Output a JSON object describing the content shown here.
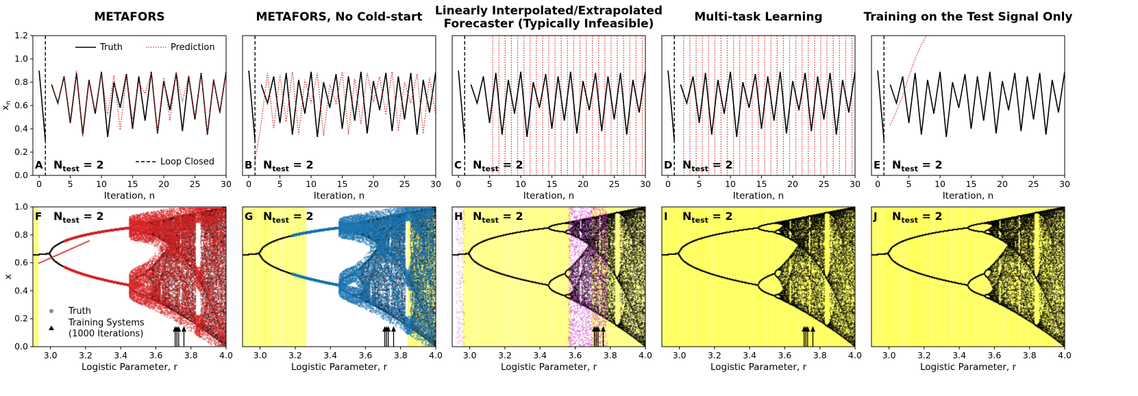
{
  "colors": {
    "truth": "#000000",
    "prediction": "#d62728",
    "loop": "#000000",
    "highlight": "#ffff66",
    "metafors_pred": "#d62728",
    "nocold_pred": "#1f77b4",
    "interp_pred": "#cc33cc",
    "training_marker": "#000000"
  },
  "legend": {
    "truth": "Truth",
    "prediction": "Prediction",
    "loop_closed": "Loop Closed",
    "truth_marker": "Truth",
    "training_line1": "Training Systems",
    "training_line2": "(1000 Iterations)"
  },
  "ntest": {
    "prefix": "N",
    "sub": "test",
    "suffix": " = 2"
  },
  "chart_data": [
    {
      "type": "line",
      "panel": "A",
      "title": [
        "METAFORS"
      ],
      "xlabel": "Iteration, n",
      "ylabel": "x_n",
      "xlim": [
        -1,
        30
      ],
      "ylim": [
        0,
        1.2
      ],
      "xticks": [
        0,
        5,
        10,
        15,
        20,
        25,
        30
      ],
      "yticks": [
        0.0,
        0.2,
        0.4,
        0.6,
        0.8,
        1.0,
        1.2
      ],
      "loop_closed_x": 1,
      "show_legend": true,
      "series": [
        {
          "name": "Truth",
          "x": [
            0,
            1
          ],
          "y": [
            0.9,
            0.3
          ]
        },
        {
          "name": "Truth",
          "x": [
            2,
            3,
            4,
            5,
            6,
            7,
            8,
            9,
            10,
            11,
            12,
            13,
            14,
            15,
            16,
            17,
            18,
            19,
            20,
            21,
            22,
            23,
            24,
            25,
            26,
            27,
            28,
            29,
            30
          ],
          "y": [
            0.78,
            0.62,
            0.85,
            0.45,
            0.88,
            0.35,
            0.82,
            0.53,
            0.89,
            0.33,
            0.8,
            0.58,
            0.87,
            0.4,
            0.85,
            0.47,
            0.89,
            0.36,
            0.81,
            0.56,
            0.88,
            0.38,
            0.85,
            0.48,
            0.88,
            0.35,
            0.82,
            0.54,
            0.89
          ]
        },
        {
          "name": "Prediction",
          "x": [
            2,
            3,
            4,
            5,
            6,
            7,
            8,
            9,
            10,
            11,
            12,
            13,
            14,
            15,
            16,
            17,
            18,
            19,
            20,
            21,
            22,
            23,
            24,
            25,
            26,
            27,
            28,
            29,
            30
          ],
          "y": [
            0.77,
            0.63,
            0.84,
            0.47,
            0.9,
            0.33,
            0.81,
            0.55,
            0.87,
            0.52,
            0.86,
            0.39,
            0.85,
            0.48,
            0.8,
            0.7,
            0.88,
            0.37,
            0.84,
            0.47,
            0.89,
            0.63,
            0.86,
            0.5,
            0.87,
            0.36,
            0.83,
            0.53,
            0.89
          ]
        }
      ]
    },
    {
      "type": "line",
      "panel": "B",
      "title": [
        "METAFORS, No Cold-start"
      ],
      "xlabel": "Iteration, n",
      "xlim": [
        -1,
        30
      ],
      "ylim": [
        0,
        1.2
      ],
      "xticks": [
        0,
        5,
        10,
        15,
        20,
        25,
        30
      ],
      "loop_closed_x": 1,
      "series": [
        {
          "name": "Truth",
          "x": [
            0,
            1
          ],
          "y": [
            0.9,
            0.3
          ]
        },
        {
          "name": "Truth",
          "x": [
            2,
            3,
            4,
            5,
            6,
            7,
            8,
            9,
            10,
            11,
            12,
            13,
            14,
            15,
            16,
            17,
            18,
            19,
            20,
            21,
            22,
            23,
            24,
            25,
            26,
            27,
            28,
            29,
            30
          ],
          "y": [
            0.78,
            0.62,
            0.85,
            0.45,
            0.88,
            0.35,
            0.82,
            0.53,
            0.89,
            0.33,
            0.8,
            0.58,
            0.87,
            0.4,
            0.85,
            0.47,
            0.89,
            0.36,
            0.81,
            0.56,
            0.88,
            0.38,
            0.85,
            0.48,
            0.88,
            0.35,
            0.82,
            0.54,
            0.89
          ]
        },
        {
          "name": "Prediction",
          "x": [
            1,
            2,
            3,
            4,
            5,
            6,
            7,
            8,
            9,
            10,
            11,
            12,
            13,
            14,
            15,
            16,
            17,
            18,
            19,
            20,
            21,
            22,
            23,
            24,
            25,
            26,
            27,
            28,
            29,
            30
          ],
          "y": [
            0.12,
            0.45,
            0.88,
            0.4,
            0.86,
            0.46,
            0.89,
            0.35,
            0.82,
            0.62,
            0.88,
            0.34,
            0.78,
            0.62,
            0.89,
            0.35,
            0.83,
            0.44,
            0.88,
            0.63,
            0.85,
            0.52,
            0.89,
            0.38,
            0.8,
            0.62,
            0.87,
            0.36,
            0.84,
            0.52
          ]
        }
      ]
    },
    {
      "type": "line",
      "panel": "C",
      "title": [
        "Linearly Interpolated/Extrapolated",
        "Forecaster (Typically Infeasible)"
      ],
      "xlabel": "Iteration, n",
      "xlim": [
        -1,
        30
      ],
      "ylim": [
        0,
        1.2
      ],
      "xticks": [
        0,
        5,
        10,
        15,
        20,
        25,
        30
      ],
      "loop_closed_x": 1,
      "diverge_start": 5.5,
      "series": [
        {
          "name": "Truth",
          "x": [
            0,
            1
          ],
          "y": [
            0.9,
            0.3
          ]
        },
        {
          "name": "Truth",
          "x": [
            2,
            3,
            4,
            5,
            6,
            7,
            8,
            9,
            10,
            11,
            12,
            13,
            14,
            15,
            16,
            17,
            18,
            19,
            20,
            21,
            22,
            23,
            24,
            25,
            26,
            27,
            28,
            29,
            30
          ],
          "y": [
            0.78,
            0.62,
            0.85,
            0.45,
            0.88,
            0.35,
            0.82,
            0.53,
            0.89,
            0.33,
            0.8,
            0.58,
            0.87,
            0.4,
            0.85,
            0.47,
            0.89,
            0.36,
            0.81,
            0.56,
            0.88,
            0.38,
            0.85,
            0.48,
            0.88,
            0.35,
            0.82,
            0.54,
            0.89
          ]
        }
      ]
    },
    {
      "type": "line",
      "panel": "D",
      "title": [
        "Multi-task Learning"
      ],
      "xlabel": "Iteration, n",
      "xlim": [
        -1,
        30
      ],
      "ylim": [
        0,
        1.2
      ],
      "xticks": [
        0,
        5,
        10,
        15,
        20,
        25,
        30
      ],
      "loop_closed_x": 1,
      "diverge_start": 2.5,
      "series": [
        {
          "name": "Truth",
          "x": [
            0,
            1
          ],
          "y": [
            0.9,
            0.3
          ]
        },
        {
          "name": "Truth",
          "x": [
            2,
            3,
            4,
            5,
            6,
            7,
            8,
            9,
            10,
            11,
            12,
            13,
            14,
            15,
            16,
            17,
            18,
            19,
            20,
            21,
            22,
            23,
            24,
            25,
            26,
            27,
            28,
            29,
            30
          ],
          "y": [
            0.78,
            0.62,
            0.85,
            0.45,
            0.88,
            0.35,
            0.82,
            0.53,
            0.89,
            0.33,
            0.8,
            0.58,
            0.87,
            0.4,
            0.85,
            0.47,
            0.89,
            0.36,
            0.81,
            0.56,
            0.88,
            0.38,
            0.85,
            0.48,
            0.88,
            0.35,
            0.82,
            0.54,
            0.89
          ]
        }
      ]
    },
    {
      "type": "line",
      "panel": "E",
      "title": [
        "Training on the Test Signal Only"
      ],
      "xlabel": "Iteration, n",
      "xlim": [
        -1,
        30
      ],
      "ylim": [
        0,
        1.2
      ],
      "xticks": [
        0,
        5,
        10,
        15,
        20,
        25,
        30
      ],
      "loop_closed_x": 1,
      "series": [
        {
          "name": "Truth",
          "x": [
            0,
            1
          ],
          "y": [
            0.9,
            0.3
          ]
        },
        {
          "name": "Truth",
          "x": [
            2,
            3,
            4,
            5,
            6,
            7,
            8,
            9,
            10,
            11,
            12,
            13,
            14,
            15,
            16,
            17,
            18,
            19,
            20,
            21,
            22,
            23,
            24,
            25,
            26,
            27,
            28,
            29,
            30
          ],
          "y": [
            0.78,
            0.62,
            0.85,
            0.45,
            0.88,
            0.35,
            0.82,
            0.53,
            0.89,
            0.33,
            0.8,
            0.58,
            0.87,
            0.4,
            0.85,
            0.47,
            0.89,
            0.36,
            0.81,
            0.56,
            0.88,
            0.38,
            0.85,
            0.48,
            0.88,
            0.35,
            0.82,
            0.54,
            0.89
          ]
        },
        {
          "name": "Prediction",
          "x": [
            2,
            3,
            4,
            5,
            6,
            7,
            8
          ],
          "y": [
            0.43,
            0.55,
            0.68,
            0.85,
            1.0,
            1.12,
            1.22
          ]
        }
      ]
    },
    {
      "type": "scatter",
      "panel": "F",
      "xlabel": "Logistic Parameter, r",
      "ylabel": "x",
      "xlim": [
        2.9,
        4.0
      ],
      "ylim": [
        0,
        1.0
      ],
      "xticks": [
        3.0,
        3.2,
        3.4,
        3.6,
        3.8,
        4.0
      ],
      "yticks": [
        0.0,
        0.2,
        0.4,
        0.6,
        0.8,
        1.0
      ],
      "highlight_ranges": [
        [
          2.9,
          2.93
        ]
      ],
      "prediction": "metafors",
      "training_r": [
        3.71,
        3.72,
        3.73,
        3.76
      ],
      "show_legend": true
    },
    {
      "type": "scatter",
      "panel": "G",
      "xlabel": "Logistic Parameter, r",
      "xlim": [
        2.9,
        4.0
      ],
      "ylim": [
        0,
        1.0
      ],
      "xticks": [
        3.0,
        3.2,
        3.4,
        3.6,
        3.8,
        4.0
      ],
      "highlight_ranges": [
        [
          2.9,
          3.26
        ],
        [
          3.84,
          3.99
        ]
      ],
      "prediction": "nocold",
      "training_r": [
        3.71,
        3.72,
        3.73,
        3.76
      ]
    },
    {
      "type": "scatter",
      "panel": "H",
      "xlabel": "Logistic Parameter, r",
      "xlim": [
        2.9,
        4.0
      ],
      "ylim": [
        0,
        1.0
      ],
      "xticks": [
        3.0,
        3.2,
        3.4,
        3.6,
        3.8,
        4.0
      ],
      "highlight_ranges": [
        [
          2.96,
          3.57
        ],
        [
          3.69,
          4.0
        ]
      ],
      "prediction": "interp",
      "training_r": [
        3.71,
        3.72,
        3.73,
        3.76
      ]
    },
    {
      "type": "scatter",
      "panel": "I",
      "xlabel": "Logistic Parameter, r",
      "xlim": [
        2.9,
        4.0
      ],
      "ylim": [
        0,
        1.0
      ],
      "xticks": [
        3.0,
        3.2,
        3.4,
        3.6,
        3.8,
        4.0
      ],
      "highlight_ranges": [
        [
          2.9,
          4.0
        ]
      ],
      "prediction": "none",
      "training_r": [
        3.71,
        3.72,
        3.73,
        3.76
      ]
    },
    {
      "type": "scatter",
      "panel": "J",
      "xlabel": "Logistic Parameter, r",
      "xlim": [
        2.9,
        4.0
      ],
      "ylim": [
        0,
        1.0
      ],
      "xticks": [
        3.0,
        3.2,
        3.4,
        3.6,
        3.8,
        4.0
      ],
      "highlight_ranges": [
        [
          2.9,
          4.0
        ]
      ],
      "prediction": "none",
      "training_r": []
    }
  ]
}
